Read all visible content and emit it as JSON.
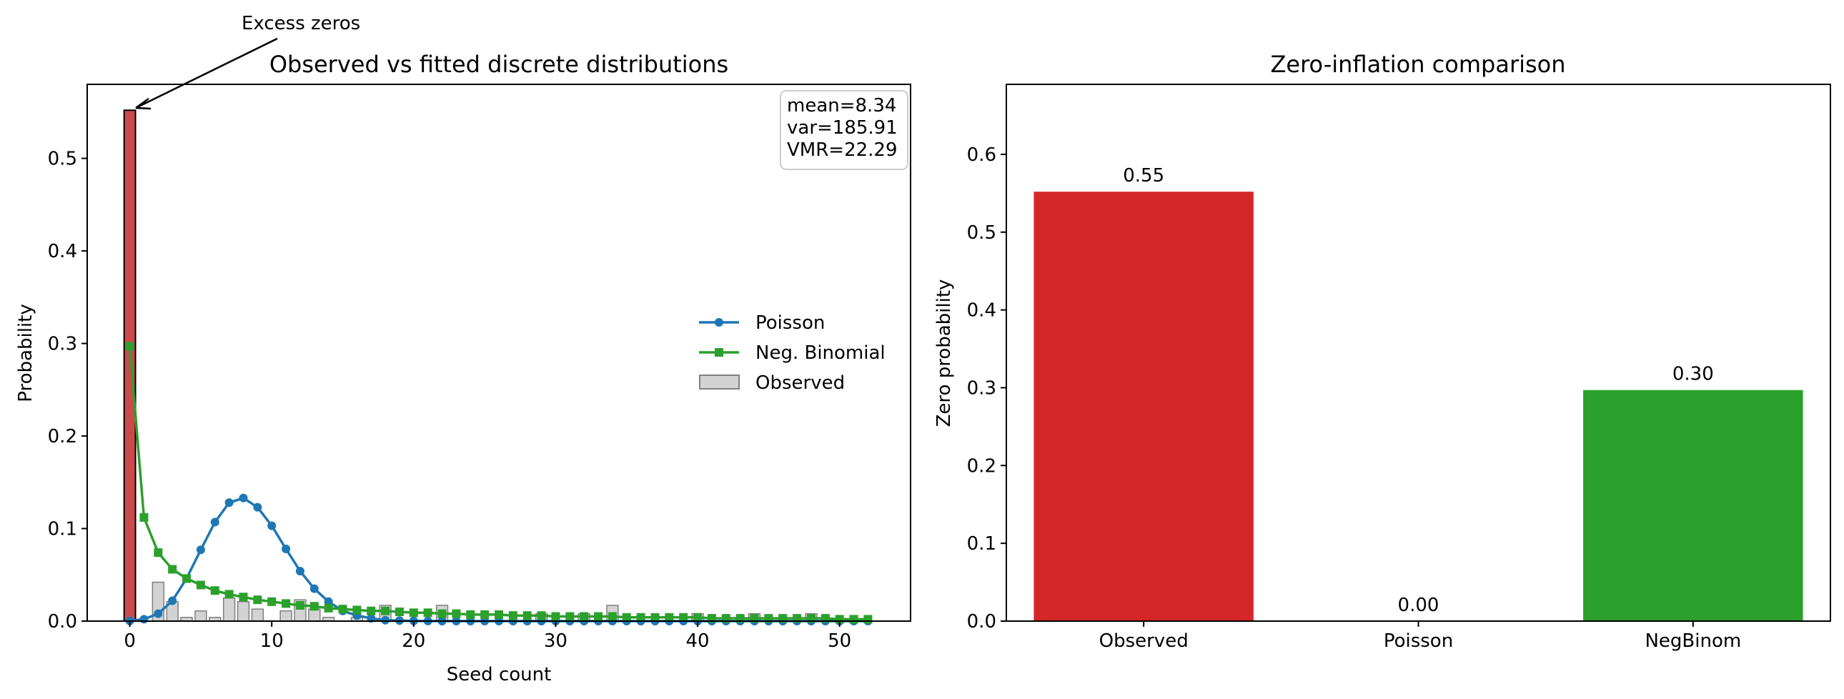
{
  "chart_data": [
    {
      "type": "bar",
      "title": "Observed vs fitted discrete distributions",
      "xlabel": "Seed count",
      "ylabel": "Probability",
      "xlim": [
        -3,
        55
      ],
      "ylim": [
        0,
        0.58
      ],
      "xticks": [
        0,
        10,
        20,
        30,
        40,
        50
      ],
      "yticks": [
        "0.0",
        "0.1",
        "0.2",
        "0.3",
        "0.4",
        "0.5"
      ],
      "grid": false,
      "legend_position": "center-right",
      "colors": {
        "observed_zero": "#cd4a4a",
        "observed": "#d3d3d3",
        "observed_edge": "#808080",
        "poisson": "#1f77b4",
        "negbinom": "#2ca02c"
      },
      "stats_box": [
        "mean=8.34",
        "var=185.91",
        "VMR=22.29"
      ],
      "annotation": {
        "text": "Excess zeros",
        "x": 0,
        "y": 0.552
      },
      "observed": {
        "name": "Observed",
        "x": [
          0,
          2,
          3,
          4,
          5,
          6,
          7,
          8,
          9,
          11,
          12,
          13,
          14,
          16,
          18,
          22,
          29,
          32,
          34,
          40,
          44,
          48
        ],
        "y": [
          0.552,
          0.042,
          0.021,
          0.004,
          0.011,
          0.004,
          0.025,
          0.021,
          0.013,
          0.011,
          0.023,
          0.013,
          0.004,
          0.004,
          0.017,
          0.017,
          0.008,
          0.008,
          0.017,
          0.008,
          0.008,
          0.008
        ]
      },
      "series": [
        {
          "name": "Poisson",
          "x": [
            0,
            1,
            2,
            3,
            4,
            5,
            6,
            7,
            8,
            9,
            10,
            11,
            12,
            13,
            14,
            15,
            16,
            17,
            18,
            19,
            20,
            21,
            22,
            23,
            24,
            25,
            26,
            27,
            28,
            29,
            30,
            31,
            32,
            33,
            34,
            35,
            36,
            37,
            38,
            39,
            40,
            41,
            42,
            43,
            44,
            45,
            46,
            47,
            48,
            49,
            50,
            51,
            52
          ],
          "values": [
            0.0002,
            0.002,
            0.008,
            0.022,
            0.046,
            0.077,
            0.107,
            0.128,
            0.133,
            0.123,
            0.103,
            0.078,
            0.054,
            0.035,
            0.021,
            0.011,
            0.006,
            0.003,
            0.001,
            0.0006,
            0.0002,
            0.0001,
            0,
            0,
            0,
            0,
            0,
            0,
            0,
            0,
            0,
            0,
            0,
            0,
            0,
            0,
            0,
            0,
            0,
            0,
            0,
            0,
            0,
            0,
            0,
            0,
            0,
            0,
            0,
            0,
            0,
            0,
            0
          ]
        },
        {
          "name": "Neg. Binomial",
          "x": [
            0,
            1,
            2,
            3,
            4,
            5,
            6,
            7,
            8,
            9,
            10,
            11,
            12,
            13,
            14,
            15,
            16,
            17,
            18,
            19,
            20,
            21,
            22,
            23,
            24,
            25,
            26,
            27,
            28,
            29,
            30,
            31,
            32,
            33,
            34,
            35,
            36,
            37,
            38,
            39,
            40,
            41,
            42,
            43,
            44,
            45,
            46,
            47,
            48,
            49,
            50,
            51,
            52
          ],
          "values": [
            0.297,
            0.112,
            0.074,
            0.056,
            0.046,
            0.039,
            0.033,
            0.029,
            0.026,
            0.023,
            0.021,
            0.019,
            0.017,
            0.016,
            0.014,
            0.013,
            0.012,
            0.011,
            0.011,
            0.01,
            0.009,
            0.009,
            0.008,
            0.008,
            0.007,
            0.007,
            0.007,
            0.006,
            0.006,
            0.006,
            0.005,
            0.005,
            0.005,
            0.005,
            0.005,
            0.004,
            0.004,
            0.004,
            0.004,
            0.004,
            0.004,
            0.003,
            0.003,
            0.003,
            0.003,
            0.003,
            0.003,
            0.003,
            0.003,
            0.003,
            0.002,
            0.002,
            0.002
          ]
        }
      ]
    },
    {
      "type": "bar",
      "title": "Zero-inflation comparison",
      "xlabel": "",
      "ylabel": "Zero probability",
      "ylim": [
        0,
        0.69
      ],
      "yticks": [
        "0.0",
        "0.1",
        "0.2",
        "0.3",
        "0.4",
        "0.5",
        "0.6"
      ],
      "grid": false,
      "categories": [
        "Observed",
        "Poisson",
        "NegBinom"
      ],
      "values": [
        0.552,
        0.0002,
        0.297
      ],
      "value_labels": [
        "0.55",
        "0.00",
        "0.30"
      ],
      "colors": [
        "#d62728",
        "#1f77b4",
        "#2ca02c"
      ]
    }
  ]
}
